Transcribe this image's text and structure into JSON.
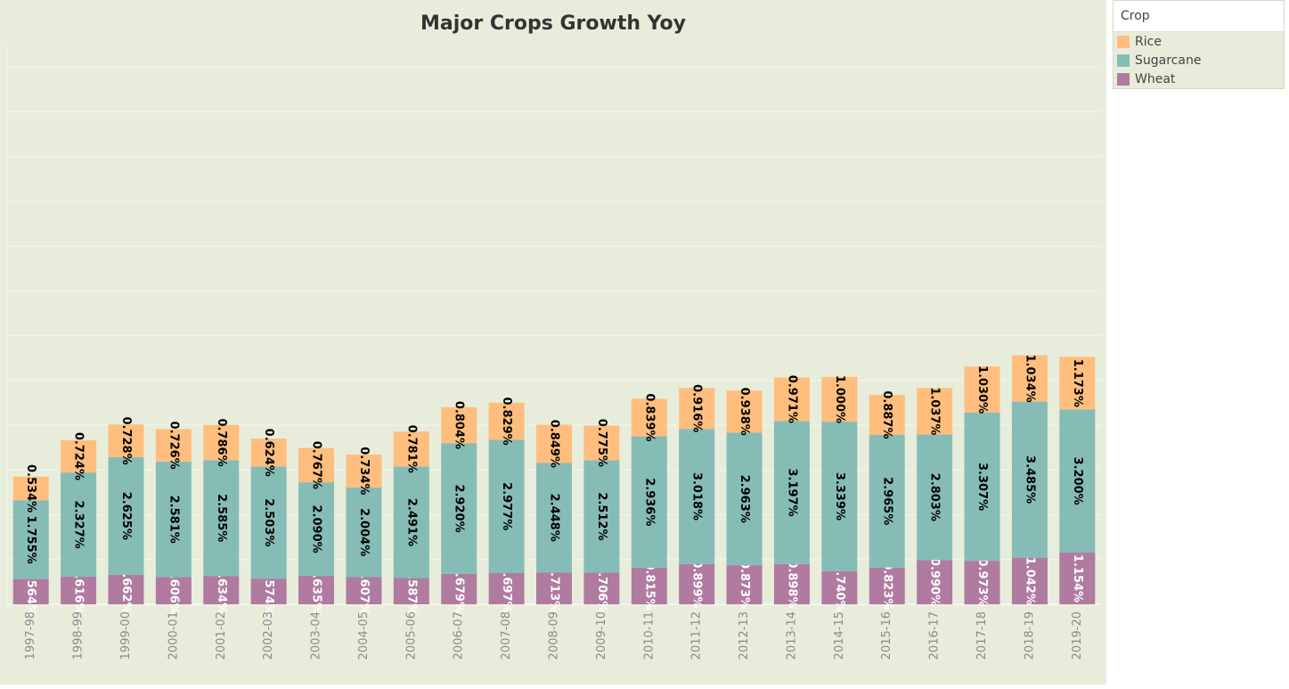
{
  "chart_data": {
    "type": "bar",
    "stacked": true,
    "title": "Major Crops Growth Yoy",
    "xlabel": "",
    "ylabel": "",
    "ylim": [
      0,
      12.5
    ],
    "grid": true,
    "legend_position": "right",
    "legend_title": "Crop",
    "categories": [
      "1997-98",
      "1998-99",
      "1999-00",
      "2000-01",
      "2001-02",
      "2002-03",
      "2003-04",
      "2004-05",
      "2005-06",
      "2006-07",
      "2007-08",
      "2008-09",
      "2009-10",
      "2010-11",
      "2011-12",
      "2012-13",
      "2013-14",
      "2014-15",
      "2015-16",
      "2016-17",
      "2017-18",
      "2018-19",
      "2019-20"
    ],
    "series": [
      {
        "name": "Wheat",
        "color": "#b07aa1",
        "values": [
          0.564,
          0.616,
          0.662,
          0.606,
          0.634,
          0.574,
          0.635,
          0.607,
          0.587,
          0.679,
          0.697,
          0.713,
          0.706,
          0.815,
          0.899,
          0.873,
          0.898,
          0.74,
          0.823,
          0.99,
          0.973,
          1.042,
          1.154
        ],
        "labels": [
          "0.564%",
          "0.616%",
          "0.662%",
          "0.606%",
          "0.634%",
          "0.574%",
          "0.635%",
          "0.607%",
          "0.587%",
          "0.679%",
          "0.697%",
          "0.713%",
          "0.706%",
          "0.815%",
          "0.899%",
          "0.873%",
          "0.898%",
          "0.740%",
          "0.823%",
          "0.990%",
          "0.973%",
          "1.042%",
          "1.154%"
        ]
      },
      {
        "name": "Sugarcane",
        "color": "#86bcb6",
        "values": [
          1.755,
          2.327,
          2.625,
          2.581,
          2.585,
          2.503,
          2.09,
          2.004,
          2.491,
          2.92,
          2.977,
          2.448,
          2.512,
          2.936,
          3.018,
          2.963,
          3.197,
          3.339,
          2.965,
          2.803,
          3.307,
          3.485,
          3.2
        ],
        "labels": [
          "1.755%",
          "2.327%",
          "2.625%",
          "2.581%",
          "2.585%",
          "2.503%",
          "2.090%",
          "2.004%",
          "2.491%",
          "2.920%",
          "2.977%",
          "2.448%",
          "2.512%",
          "2.936%",
          "3.018%",
          "2.963%",
          "3.197%",
          "3.339%",
          "2.965%",
          "2.803%",
          "3.307%",
          "3.485%",
          "3.200%"
        ]
      },
      {
        "name": "Rice",
        "color": "#ffbe7d",
        "values": [
          0.534,
          0.724,
          0.728,
          0.726,
          0.786,
          0.624,
          0.767,
          0.734,
          0.781,
          0.804,
          0.829,
          0.849,
          0.775,
          0.839,
          0.916,
          0.938,
          0.971,
          1.0,
          0.887,
          1.037,
          1.03,
          1.034,
          1.173
        ],
        "labels": [
          "0.534%",
          "0.724%",
          "0.728%",
          "0.726%",
          "0.786%",
          "0.624%",
          "0.767%",
          "0.734%",
          "0.781%",
          "0.804%",
          "0.829%",
          "0.849%",
          "0.775%",
          "0.839%",
          "0.916%",
          "0.938%",
          "0.971%",
          "1.000%",
          "0.887%",
          "1.037%",
          "1.030%",
          "1.034%",
          "1.173%"
        ]
      }
    ]
  },
  "colors": {
    "background": "#e8eddb",
    "gridline": "#f4f6ee",
    "axis_text": "#8a8a8a",
    "label_dark": "#000000",
    "label_light": "#ffffff"
  },
  "legend": {
    "items": [
      {
        "label": "Rice",
        "color": "#ffbe7d"
      },
      {
        "label": "Sugarcane",
        "color": "#86bcb6"
      },
      {
        "label": "Wheat",
        "color": "#b07aa1"
      }
    ]
  }
}
